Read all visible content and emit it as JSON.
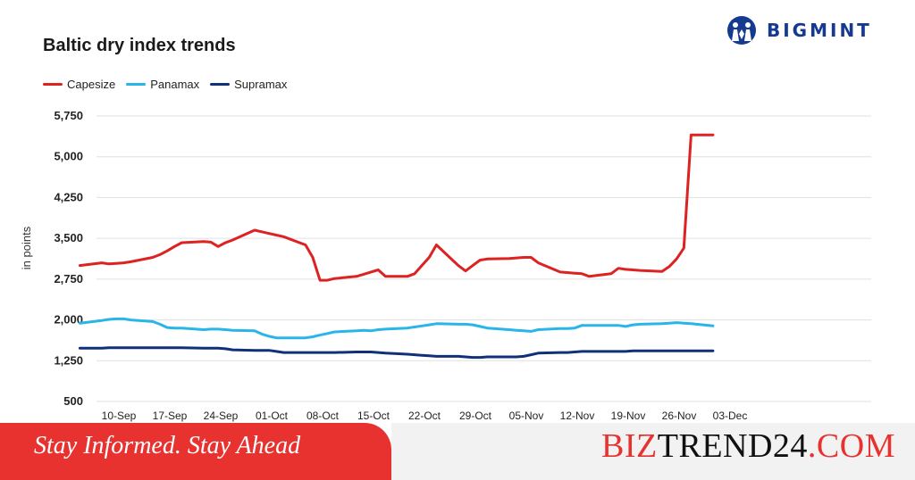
{
  "logo": {
    "text": "BIGMINT",
    "icon": "bigmint-emblem-icon",
    "color": "#163a8f"
  },
  "footer": {
    "tagline": "Stay Informed. Stay Ahead",
    "brand_part1": "BIZ",
    "brand_part2": "TREND24",
    "brand_part3": ".COM",
    "accent_color": "#e8322f"
  },
  "chart_data": {
    "type": "line",
    "title": "Baltic dry index trends",
    "ylabel": "in points",
    "xlabel": "",
    "ylim": [
      500,
      5750
    ],
    "yticks": [
      "5,750",
      "5,000",
      "4,250",
      "3,500",
      "2,750",
      "2,000",
      "1,250",
      "500"
    ],
    "grid": "horizontal",
    "legend_position": "top-left",
    "xticks": [
      "10-Sep",
      "17-Sep",
      "24-Sep",
      "01-Oct",
      "08-Oct",
      "15-Oct",
      "22-Oct",
      "29-Oct",
      "05-Nov",
      "12-Nov",
      "19-Nov",
      "26-Nov",
      "03-Dec"
    ],
    "x": [
      "2024-09-06",
      "2024-09-09",
      "2024-09-10",
      "2024-09-11",
      "2024-09-12",
      "2024-09-13",
      "2024-09-16",
      "2024-09-17",
      "2024-09-18",
      "2024-09-19",
      "2024-09-20",
      "2024-09-23",
      "2024-09-24",
      "2024-09-25",
      "2024-09-26",
      "2024-09-27",
      "2024-09-30",
      "2024-10-01",
      "2024-10-02",
      "2024-10-03",
      "2024-10-04",
      "2024-10-07",
      "2024-10-08",
      "2024-10-09",
      "2024-10-10",
      "2024-10-11",
      "2024-10-14",
      "2024-10-15",
      "2024-10-16",
      "2024-10-17",
      "2024-10-18",
      "2024-10-21",
      "2024-10-22",
      "2024-10-23",
      "2024-10-24",
      "2024-10-25",
      "2024-10-28",
      "2024-10-29",
      "2024-10-30",
      "2024-10-31",
      "2024-11-01",
      "2024-11-04",
      "2024-11-05",
      "2024-11-06",
      "2024-11-07",
      "2024-11-08",
      "2024-11-11",
      "2024-11-12",
      "2024-11-13",
      "2024-11-14",
      "2024-11-15",
      "2024-11-18",
      "2024-11-19",
      "2024-11-20",
      "2024-11-21",
      "2024-11-22",
      "2024-11-25",
      "2024-11-26",
      "2024-11-27",
      "2024-11-28",
      "2024-11-29",
      "2024-12-02"
    ],
    "series": [
      {
        "name": "Capesize",
        "color": "#dd2222",
        "values": [
          3000,
          3050,
          3030,
          3040,
          3050,
          3070,
          3150,
          3200,
          3270,
          3350,
          3420,
          3440,
          3430,
          3350,
          3420,
          3470,
          3650,
          3620,
          3590,
          3560,
          3530,
          3380,
          3150,
          2730,
          2730,
          2760,
          2800,
          2840,
          2880,
          2920,
          2800,
          2800,
          2850,
          3000,
          3150,
          3380,
          3000,
          2900,
          3000,
          3100,
          3120,
          3130,
          3140,
          3150,
          3150,
          3050,
          2880,
          2870,
          2860,
          2850,
          2800,
          2850,
          2950,
          2930,
          2920,
          2910,
          2890,
          2980,
          3120,
          3320,
          5400,
          5400
        ]
      },
      {
        "name": "Panamax",
        "color": "#29b5e8",
        "values": [
          1940,
          1990,
          2010,
          2020,
          2020,
          2000,
          1970,
          1920,
          1860,
          1850,
          1850,
          1820,
          1830,
          1830,
          1820,
          1810,
          1800,
          1740,
          1700,
          1670,
          1670,
          1670,
          1690,
          1720,
          1750,
          1780,
          1800,
          1810,
          1800,
          1820,
          1830,
          1850,
          1870,
          1890,
          1910,
          1930,
          1920,
          1920,
          1910,
          1880,
          1850,
          1820,
          1810,
          1800,
          1790,
          1820,
          1840,
          1840,
          1850,
          1900,
          1900,
          1900,
          1900,
          1880,
          1910,
          1920,
          1930,
          1940,
          1950,
          1940,
          1930,
          1890
        ]
      },
      {
        "name": "Supramax",
        "color": "#12307a",
        "values": [
          1480,
          1480,
          1490,
          1490,
          1490,
          1490,
          1490,
          1490,
          1490,
          1490,
          1490,
          1480,
          1480,
          1480,
          1470,
          1450,
          1440,
          1440,
          1440,
          1420,
          1400,
          1400,
          1400,
          1400,
          1400,
          1400,
          1410,
          1410,
          1410,
          1400,
          1390,
          1370,
          1360,
          1350,
          1340,
          1330,
          1330,
          1320,
          1310,
          1310,
          1320,
          1320,
          1320,
          1330,
          1360,
          1390,
          1400,
          1400,
          1410,
          1420,
          1420,
          1420,
          1420,
          1420,
          1430,
          1430,
          1430,
          1430,
          1430,
          1430,
          1430,
          1430
        ]
      }
    ]
  }
}
